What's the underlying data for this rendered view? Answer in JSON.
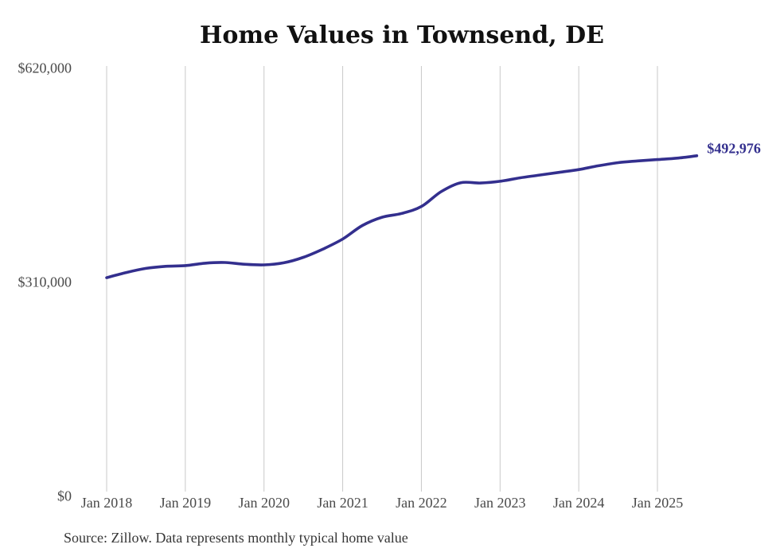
{
  "page_title": "Home Values in Townsend, DE",
  "chart_data": {
    "type": "line",
    "title": "Home Values in Townsend, DE",
    "source_note": "Source: Zillow. Data represents monthly typical home value",
    "end_label": "$492,976",
    "latest_value": 492976,
    "legend": "none",
    "grid": "vertical-only",
    "colors": {
      "line": "#332f8e",
      "end_label_text": "#332f8e",
      "gridline": "#c9c9c9",
      "axis_text": "#4a4a4a",
      "title_text": "#111111",
      "source_text": "#363636",
      "background": "#ffffff"
    },
    "y_axis": {
      "range": [
        0,
        620000
      ],
      "ticks": [
        {
          "value": 620000,
          "label": "$620,000"
        },
        {
          "value": 310000,
          "label": "$310,000"
        },
        {
          "value": 0,
          "label": "$0"
        }
      ]
    },
    "x_axis": {
      "ticks": [
        {
          "date": "2018-01",
          "label": "Jan 2018"
        },
        {
          "date": "2019-01",
          "label": "Jan 2019"
        },
        {
          "date": "2020-01",
          "label": "Jan 2020"
        },
        {
          "date": "2021-01",
          "label": "Jan 2021"
        },
        {
          "date": "2022-01",
          "label": "Jan 2022"
        },
        {
          "date": "2023-01",
          "label": "Jan 2023"
        },
        {
          "date": "2024-01",
          "label": "Jan 2024"
        },
        {
          "date": "2025-01",
          "label": "Jan 2025"
        }
      ]
    },
    "series": [
      {
        "name": "Typical home value",
        "points": [
          {
            "date": "2018-01",
            "value": 316500
          },
          {
            "date": "2018-04",
            "value": 324000
          },
          {
            "date": "2018-07",
            "value": 330000
          },
          {
            "date": "2018-10",
            "value": 333000
          },
          {
            "date": "2019-01",
            "value": 334000
          },
          {
            "date": "2019-04",
            "value": 337500
          },
          {
            "date": "2019-07",
            "value": 338500
          },
          {
            "date": "2019-10",
            "value": 336000
          },
          {
            "date": "2020-01",
            "value": 335000
          },
          {
            "date": "2020-04",
            "value": 338000
          },
          {
            "date": "2020-07",
            "value": 346000
          },
          {
            "date": "2020-10",
            "value": 358000
          },
          {
            "date": "2021-01",
            "value": 372500
          },
          {
            "date": "2021-04",
            "value": 392000
          },
          {
            "date": "2021-07",
            "value": 404000
          },
          {
            "date": "2021-10",
            "value": 409500
          },
          {
            "date": "2022-01",
            "value": 419500
          },
          {
            "date": "2022-04",
            "value": 441000
          },
          {
            "date": "2022-07",
            "value": 454000
          },
          {
            "date": "2022-10",
            "value": 453500
          },
          {
            "date": "2023-01",
            "value": 456000
          },
          {
            "date": "2023-04",
            "value": 461000
          },
          {
            "date": "2023-07",
            "value": 465000
          },
          {
            "date": "2023-10",
            "value": 469000
          },
          {
            "date": "2024-01",
            "value": 473000
          },
          {
            "date": "2024-04",
            "value": 478500
          },
          {
            "date": "2024-07",
            "value": 483000
          },
          {
            "date": "2024-10",
            "value": 485500
          },
          {
            "date": "2025-01",
            "value": 487500
          },
          {
            "date": "2025-04",
            "value": 489500
          },
          {
            "date": "2025-07",
            "value": 492976
          }
        ]
      }
    ]
  }
}
